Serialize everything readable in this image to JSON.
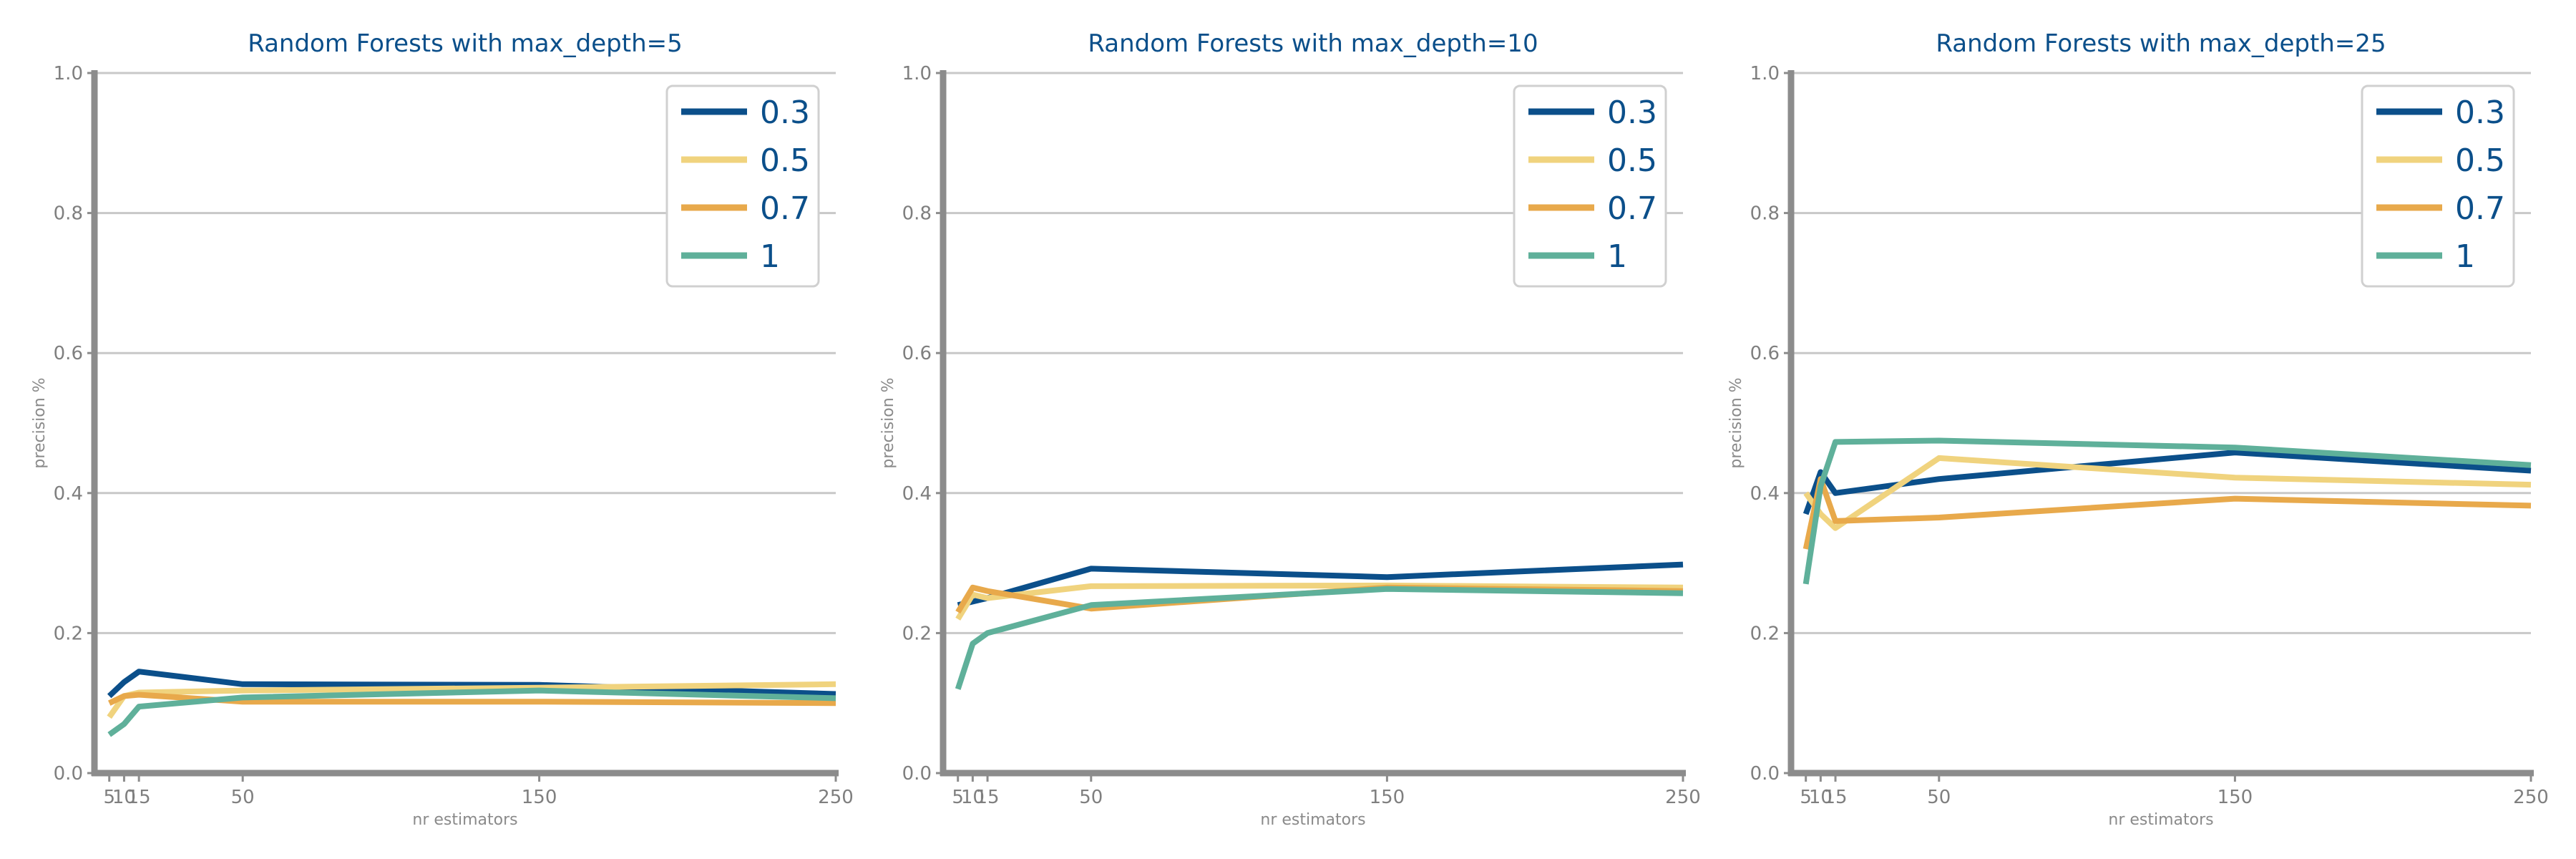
{
  "chart_data": [
    {
      "type": "line",
      "title": "Random Forests with max_depth=5",
      "xlabel": "nr estimators",
      "ylabel": "precision %",
      "x": [
        5,
        10,
        15,
        50,
        150,
        250
      ],
      "xticks": [
        "5",
        "10",
        "15",
        "50",
        "150",
        "250"
      ],
      "ylim": [
        0,
        1
      ],
      "yticks": [
        "0.0",
        "0.2",
        "0.4",
        "0.6",
        "0.8",
        "1.0"
      ],
      "grid": "horizontal",
      "legend_position": "top-right",
      "series": [
        {
          "name": "0.3",
          "color": "#0b4f8a",
          "values": [
            0.11,
            0.13,
            0.145,
            0.127,
            0.126,
            0.113
          ]
        },
        {
          "name": "0.5",
          "color": "#f0d37e",
          "values": [
            0.08,
            0.11,
            0.115,
            0.118,
            0.122,
            0.127
          ]
        },
        {
          "name": "0.7",
          "color": "#e8a94b",
          "values": [
            0.1,
            0.11,
            0.112,
            0.102,
            0.102,
            0.1
          ]
        },
        {
          "name": "1",
          "color": "#5fb09a",
          "values": [
            0.055,
            0.07,
            0.095,
            0.108,
            0.118,
            0.107
          ]
        }
      ]
    },
    {
      "type": "line",
      "title": "Random Forests with max_depth=10",
      "xlabel": "nr estimators",
      "ylabel": "precision %",
      "x": [
        5,
        10,
        15,
        50,
        150,
        250
      ],
      "xticks": [
        "5",
        "10",
        "15",
        "50",
        "150",
        "250"
      ],
      "ylim": [
        0,
        1
      ],
      "yticks": [
        "0.0",
        "0.2",
        "0.4",
        "0.6",
        "0.8",
        "1.0"
      ],
      "grid": "horizontal",
      "legend_position": "top-right",
      "series": [
        {
          "name": "0.3",
          "color": "#0b4f8a",
          "values": [
            0.24,
            0.245,
            0.25,
            0.292,
            0.28,
            0.298
          ]
        },
        {
          "name": "0.5",
          "color": "#f0d37e",
          "values": [
            0.22,
            0.255,
            0.25,
            0.267,
            0.268,
            0.265
          ]
        },
        {
          "name": "0.7",
          "color": "#e8a94b",
          "values": [
            0.23,
            0.265,
            0.26,
            0.235,
            0.265,
            0.26
          ]
        },
        {
          "name": "1",
          "color": "#5fb09a",
          "values": [
            0.12,
            0.185,
            0.2,
            0.24,
            0.263,
            0.257
          ]
        }
      ]
    },
    {
      "type": "line",
      "title": "Random Forests with max_depth=25",
      "xlabel": "nr estimators",
      "ylabel": "precision %",
      "x": [
        5,
        10,
        15,
        50,
        150,
        250
      ],
      "xticks": [
        "5",
        "10",
        "15",
        "50",
        "150",
        "250"
      ],
      "ylim": [
        0,
        1
      ],
      "yticks": [
        "0.0",
        "0.2",
        "0.4",
        "0.6",
        "0.8",
        "1.0"
      ],
      "grid": "horizontal",
      "legend_position": "top-right",
      "series": [
        {
          "name": "0.3",
          "color": "#0b4f8a",
          "values": [
            0.37,
            0.43,
            0.4,
            0.42,
            0.458,
            0.432
          ]
        },
        {
          "name": "0.5",
          "color": "#f0d37e",
          "values": [
            0.4,
            0.37,
            0.35,
            0.45,
            0.422,
            0.412
          ]
        },
        {
          "name": "0.7",
          "color": "#e8a94b",
          "values": [
            0.32,
            0.42,
            0.36,
            0.365,
            0.392,
            0.382
          ]
        },
        {
          "name": "1",
          "color": "#5fb09a",
          "values": [
            0.27,
            0.41,
            0.473,
            0.475,
            0.465,
            0.44
          ]
        }
      ]
    }
  ]
}
